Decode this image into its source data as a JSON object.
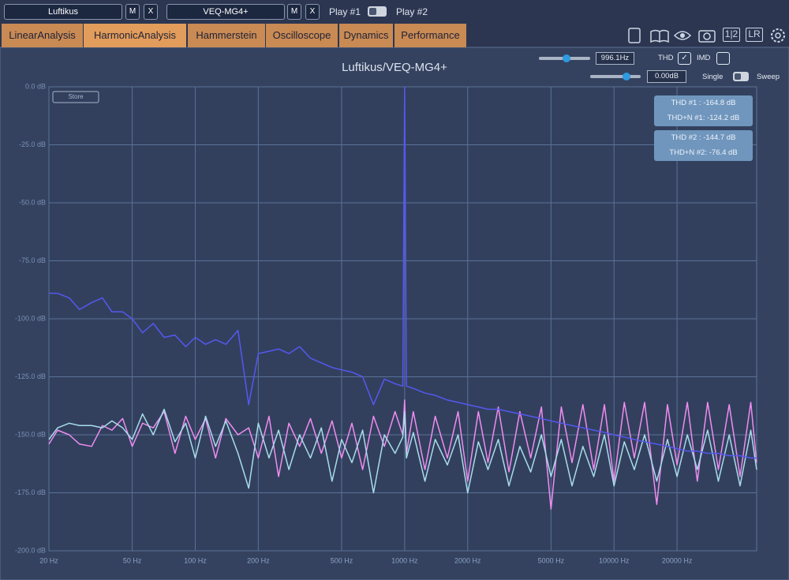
{
  "toolbar": {
    "plugin1": {
      "name": "Luftikus",
      "mute": "M",
      "close": "X"
    },
    "plugin2": {
      "name": "VEQ-MG4+",
      "mute": "M",
      "close": "X"
    },
    "play1": "Play #1",
    "play2": "Play #2"
  },
  "tabs": [
    "LinearAnalysis",
    "HarmonicAnalysis",
    "Hammerstein",
    "Oscilloscope",
    "Dynamics",
    "Performance"
  ],
  "icons": {
    "compare": "1|2",
    "channels": "LR"
  },
  "controls": {
    "frequency": "996.1Hz",
    "thd": "THD",
    "imd": "IMD",
    "level": "0.00dB",
    "single": "Single",
    "sweep": "Sweep"
  },
  "store": "Store",
  "results": [
    {
      "thd": "THD #1 : -164.8 dB",
      "thdn": "THD+N #1: -124.2 dB"
    },
    {
      "thd": "THD #2 : -144.7 dB",
      "thdn": "THD+N #2: -76.4 dB"
    }
  ],
  "chart_data": {
    "type": "line",
    "title": "Luftikus/VEQ-MG4+",
    "xscale": "log",
    "grid": true,
    "xlim": [
      20,
      48000
    ],
    "ylim": [
      -200,
      0
    ],
    "xticks": [
      {
        "value": 20,
        "label": "20 Hz"
      },
      {
        "value": 50,
        "label": "50 Hz"
      },
      {
        "value": 100,
        "label": "100 Hz"
      },
      {
        "value": 200,
        "label": "200 Hz"
      },
      {
        "value": 500,
        "label": "500 Hz"
      },
      {
        "value": 1000,
        "label": "1000 Hz"
      },
      {
        "value": 2000,
        "label": "2000 Hz"
      },
      {
        "value": 5000,
        "label": "5000 Hz"
      },
      {
        "value": 10000,
        "label": "10000 Hz"
      },
      {
        "value": 20000,
        "label": "20000 Hz"
      }
    ],
    "yticks": [
      {
        "value": 0,
        "label": "0.0 dB"
      },
      {
        "value": -25,
        "label": "-25.0 dB"
      },
      {
        "value": -50,
        "label": "-50.0 dB"
      },
      {
        "value": -75,
        "label": "-75.0 dB"
      },
      {
        "value": -100,
        "label": "-100.0 dB"
      },
      {
        "value": -125,
        "label": "-125.0 dB"
      },
      {
        "value": -150,
        "label": "-150.0 dB"
      },
      {
        "value": -175,
        "label": "-175.0 dB"
      },
      {
        "value": -200,
        "label": "-200.0 dB"
      }
    ],
    "x": [
      20,
      22,
      25,
      28,
      32,
      36,
      40,
      45,
      50,
      56,
      63,
      71,
      80,
      90,
      100,
      112,
      125,
      140,
      160,
      180,
      200,
      225,
      250,
      280,
      315,
      355,
      400,
      450,
      500,
      560,
      630,
      710,
      800,
      900,
      980,
      1000,
      1020,
      1100,
      1250,
      1400,
      1600,
      1800,
      2000,
      2250,
      2500,
      2800,
      3150,
      3550,
      4000,
      4500,
      5000,
      5600,
      6300,
      7100,
      8000,
      9000,
      10000,
      11200,
      12500,
      14000,
      16000,
      18000,
      20000,
      22400,
      25000,
      28000,
      31500,
      35500,
      40000,
      45000,
      48000
    ],
    "series": [
      {
        "color": "#f08cf0",
        "values": [
          -154,
          -148,
          -150,
          -154,
          -155,
          -146,
          -148,
          -143,
          -155,
          -145,
          -147,
          -140,
          -158,
          -142,
          -152,
          -143,
          -160,
          -143,
          -150,
          -147,
          -160,
          -142,
          -168,
          -145,
          -155,
          -143,
          -158,
          -144,
          -160,
          -145,
          -165,
          -142,
          -155,
          -140,
          -150,
          -135,
          -158,
          -140,
          -165,
          -142,
          -160,
          -140,
          -170,
          -140,
          -162,
          -138,
          -166,
          -140,
          -160,
          -138,
          -182,
          -138,
          -162,
          -137,
          -165,
          -137,
          -170,
          -136,
          -160,
          -136,
          -180,
          -137,
          -163,
          -136,
          -170,
          -136,
          -165,
          -137,
          -168,
          -136,
          -162
        ]
      },
      {
        "color": "#a8dcea",
        "values": [
          -152,
          -147,
          -145,
          -146,
          -146,
          -147,
          -144,
          -147,
          -152,
          -141,
          -150,
          -139,
          -153,
          -145,
          -160,
          -142,
          -155,
          -144,
          -158,
          -173,
          -145,
          -160,
          -148,
          -165,
          -150,
          -160,
          -147,
          -170,
          -152,
          -162,
          -148,
          -175,
          -150,
          -158,
          -151,
          -140,
          -160,
          -149,
          -170,
          -152,
          -163,
          -150,
          -175,
          -153,
          -165,
          -152,
          -172,
          -155,
          -166,
          -150,
          -168,
          -152,
          -172,
          -155,
          -168,
          -150,
          -172,
          -153,
          -165,
          -150,
          -170,
          -152,
          -168,
          -150,
          -165,
          -148,
          -170,
          -150,
          -172,
          -148,
          -165
        ]
      },
      {
        "color": "#5558f0",
        "values": [
          -89,
          -89,
          -91,
          -96,
          -93,
          -91,
          -97,
          -97,
          -100,
          -106,
          -102,
          -108,
          -107,
          -112,
          -108,
          -111,
          -109,
          -111,
          -105,
          -137,
          -115,
          -114,
          -113,
          -115,
          -112,
          -117,
          -119,
          -121,
          -122,
          -123,
          -125,
          -137,
          -126,
          -128,
          -129,
          0,
          -129,
          -130,
          -132,
          -133,
          -135,
          -136,
          -137,
          -138,
          -139,
          -139,
          -140,
          -141,
          -142,
          -143,
          -144,
          -145,
          -146,
          -147,
          -148,
          -149,
          -150,
          -151,
          -152,
          -153,
          -154,
          -155,
          -156,
          -157,
          -157,
          -158,
          -158,
          -159,
          -159,
          -160,
          -160
        ]
      }
    ]
  }
}
